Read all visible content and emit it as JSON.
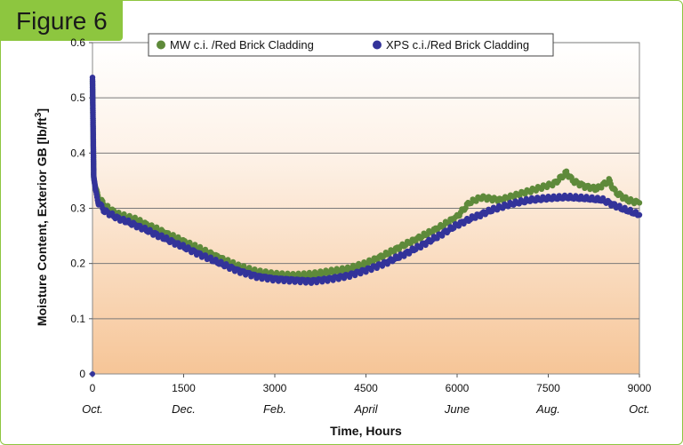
{
  "figure_label": "Figure 6",
  "chart_data": {
    "type": "scatter",
    "xlabel": "Time, Hours",
    "ylabel": "Moisture Content, Exterior GB [lb/ft",
    "ylabel_superscript": "3",
    "ylabel_close": "]",
    "xlim": [
      0,
      9000
    ],
    "ylim": [
      0,
      0.6
    ],
    "x_ticks": [
      0,
      1500,
      3000,
      4500,
      6000,
      7500,
      9000
    ],
    "x_ticks_text": [
      "0",
      "1500",
      "3000",
      "4500",
      "6000",
      "7500",
      "9000"
    ],
    "x_month_labels": [
      "Oct.",
      "Dec.",
      "Feb.",
      "April",
      "June",
      "Aug.",
      "Oct."
    ],
    "y_ticks": [
      0,
      0.1,
      0.2,
      0.3,
      0.4,
      0.5,
      0.6
    ],
    "y_ticks_text": [
      "0",
      "0.1",
      "0.2",
      "0.3",
      "0.4",
      "0.5",
      "0.6"
    ],
    "grid": "horizontal",
    "legend_position": "top",
    "background": "gradient white to peach",
    "colors": {
      "mw": "#5e8a3a",
      "xps": "#33339a",
      "grid": "#7a7a7a",
      "accent": "#8dc63f"
    },
    "series": [
      {
        "name": "MW c.i. /Red Brick Cladding",
        "x": [
          0,
          20,
          50,
          100,
          200,
          400,
          700,
          1000,
          1300,
          1600,
          2000,
          2400,
          2700,
          3000,
          3300,
          3600,
          3900,
          4200,
          4500,
          4800,
          5100,
          5400,
          5700,
          6000,
          6200,
          6400,
          6700,
          7000,
          7300,
          7600,
          7800,
          7900,
          8100,
          8300,
          8500,
          8600,
          8800,
          9000
        ],
        "y": [
          0.53,
          0.36,
          0.335,
          0.32,
          0.305,
          0.29,
          0.28,
          0.265,
          0.25,
          0.235,
          0.215,
          0.195,
          0.185,
          0.18,
          0.178,
          0.18,
          0.185,
          0.19,
          0.2,
          0.215,
          0.232,
          0.248,
          0.265,
          0.285,
          0.31,
          0.32,
          0.315,
          0.325,
          0.335,
          0.345,
          0.365,
          0.35,
          0.34,
          0.335,
          0.35,
          0.33,
          0.315,
          0.31
        ]
      },
      {
        "name": "XPS c.i./Red Brick Cladding",
        "x": [
          0,
          20,
          50,
          100,
          200,
          400,
          700,
          1000,
          1300,
          1600,
          2000,
          2400,
          2700,
          3000,
          3300,
          3600,
          3900,
          4200,
          4500,
          4800,
          5100,
          5400,
          5700,
          6000,
          6300,
          6600,
          6900,
          7200,
          7500,
          7800,
          8100,
          8400,
          8700,
          9000
        ],
        "y": [
          0.54,
          0.36,
          0.33,
          0.31,
          0.295,
          0.283,
          0.27,
          0.255,
          0.24,
          0.225,
          0.205,
          0.187,
          0.177,
          0.172,
          0.17,
          0.168,
          0.172,
          0.178,
          0.188,
          0.2,
          0.215,
          0.232,
          0.25,
          0.27,
          0.285,
          0.298,
          0.308,
          0.315,
          0.318,
          0.32,
          0.318,
          0.315,
          0.3,
          0.288
        ]
      }
    ]
  }
}
